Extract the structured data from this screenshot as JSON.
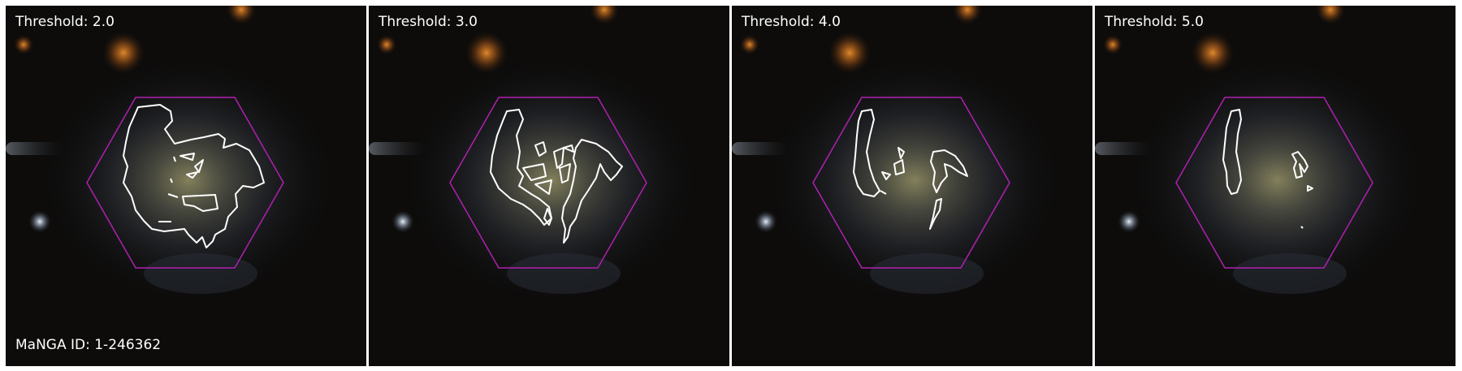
{
  "panels": [
    {
      "threshold_label": "Threshold: 2.0"
    },
    {
      "threshold_label": "Threshold: 3.0"
    },
    {
      "threshold_label": "Threshold: 4.0"
    },
    {
      "threshold_label": "Threshold: 5.0"
    }
  ],
  "manga_id_label": "MaNGA ID: 1-246362",
  "colors": {
    "hexagon": "#b020b0",
    "contour": "#ffffff",
    "background": "#0d0c0b"
  },
  "icons": [
    "galaxy-image",
    "ifu-hexagon",
    "contour-line"
  ]
}
